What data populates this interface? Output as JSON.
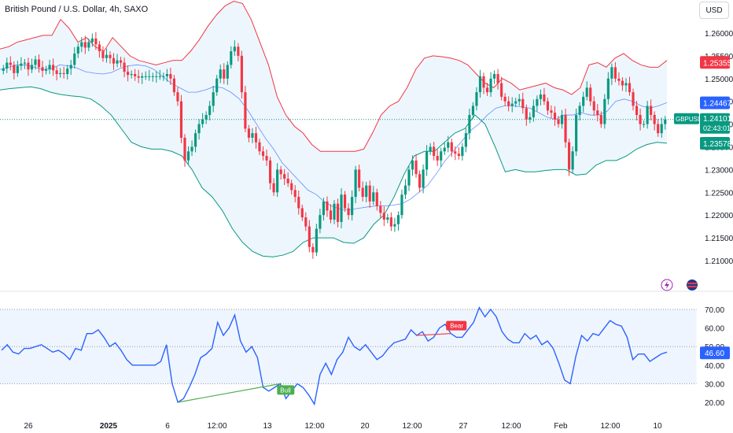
{
  "header": {
    "title": "British Pound / U.S. Dollar, 4h, SAXO",
    "currency": "USD"
  },
  "price_axis": {
    "ticks": [
      "1.26000",
      "1.25500",
      "1.25000",
      "1.24500",
      "1.24000",
      "1.23500",
      "1.23000",
      "1.22500",
      "1.22000",
      "1.21500",
      "1.21000"
    ],
    "tick_values": [
      1.26,
      1.255,
      1.25,
      1.245,
      1.24,
      1.235,
      1.23,
      1.225,
      1.22,
      1.215,
      1.21
    ],
    "labels": {
      "upper_band": {
        "text": "1.25355",
        "value": 1.25355,
        "color": "#f23645"
      },
      "basis": {
        "text": "1.24467",
        "value": 1.24467,
        "color": "#2962ff"
      },
      "symbol": "GBPUSD",
      "last_price": {
        "text": "1.24101",
        "value": 1.24101,
        "color": "#089981"
      },
      "countdown": "02:43:01",
      "lower_band": {
        "text": "1.23578",
        "value": 1.23578,
        "color": "#089981"
      }
    }
  },
  "rsi_axis": {
    "ticks": [
      "70.00",
      "60.00",
      "50.00",
      "40.00",
      "30.00",
      "20.00"
    ],
    "tick_values": [
      70,
      60,
      50,
      40,
      30,
      20
    ],
    "current": {
      "text": "46.60",
      "value": 46.6
    }
  },
  "time_axis": {
    "labels": [
      "26",
      "2025",
      "6",
      "12:00",
      "13",
      "12:00",
      "20",
      "12:00",
      "27",
      "12:00",
      "Feb",
      "12:00",
      "10"
    ],
    "bold": [
      "2025"
    ]
  },
  "annotations": {
    "bull_label": "Bull",
    "bear_label": "Bear"
  },
  "icons": [
    "lightning-icon",
    "flag-icon"
  ],
  "colors": {
    "up": "#089981",
    "down": "#f23645",
    "rsi_line": "#2962ff",
    "band_fill": "#e8f4fd"
  },
  "chart_data": [
    {
      "type": "candlestick",
      "title": "British Pound / U.S. Dollar, 4h, SAXO",
      "indicator": "Bollinger Bands",
      "y_range": [
        1.206,
        1.264
      ],
      "candles": [
        1.2522,
        1.2535,
        1.253,
        1.2512,
        1.2528,
        1.2533,
        1.2535,
        1.252,
        1.253,
        1.2542,
        1.2525,
        1.2517,
        1.252,
        1.253,
        1.2518,
        1.251,
        1.2512,
        1.251,
        1.2522,
        1.253,
        1.2555,
        1.257,
        1.258,
        1.2568,
        1.258,
        1.2588,
        1.2575,
        1.256,
        1.2545,
        1.2552,
        1.2545,
        1.2533,
        1.254,
        1.2535,
        1.2515,
        1.2508,
        1.251,
        1.2505,
        1.2502,
        1.2505,
        1.2505,
        1.2505,
        1.2505,
        1.2505,
        1.2505,
        1.2505,
        1.251,
        1.25,
        1.247,
        1.245,
        1.237,
        1.232,
        1.234,
        1.235,
        1.238,
        1.24,
        1.241,
        1.242,
        1.244,
        1.247,
        1.25,
        1.252,
        1.25,
        1.253,
        1.256,
        1.257,
        1.255,
        1.247,
        1.239,
        1.237,
        1.238,
        1.236,
        1.234,
        1.233,
        1.232,
        1.227,
        1.225,
        1.23,
        1.229,
        1.228,
        1.227,
        1.2255,
        1.224,
        1.2215,
        1.2195,
        1.2175,
        1.213,
        1.2118,
        1.217,
        1.22,
        1.223,
        1.221,
        1.219,
        1.2225,
        1.2185,
        1.2245,
        1.2215,
        1.22,
        1.224,
        1.23,
        1.226,
        1.224,
        1.2265,
        1.223,
        1.225,
        1.222,
        1.2205,
        1.219,
        1.2195,
        1.2175,
        1.218,
        1.22,
        1.2245,
        1.2265,
        1.23,
        1.232,
        1.229,
        1.226,
        1.23,
        1.234,
        1.235,
        1.233,
        1.232,
        1.234,
        1.2348,
        1.236,
        1.234,
        1.2335,
        1.233,
        1.235,
        1.238,
        1.242,
        1.244,
        1.247,
        1.2505,
        1.248,
        1.247,
        1.25,
        1.251,
        1.249,
        1.246,
        1.245,
        1.244,
        1.2445,
        1.245,
        1.2455,
        1.2435,
        1.241,
        1.2415,
        1.244,
        1.2455,
        1.2465,
        1.245,
        1.243,
        1.2425,
        1.241,
        1.24,
        1.242,
        1.236,
        1.23,
        1.234,
        1.242,
        1.244,
        1.246,
        1.248,
        1.245,
        1.243,
        1.242,
        1.24,
        1.2455,
        1.25,
        1.2525,
        1.25,
        1.2495,
        1.2485,
        1.249,
        1.247,
        1.244,
        1.242,
        1.24,
        1.24,
        1.244,
        1.242,
        1.24,
        1.238,
        1.24,
        1.241
      ],
      "upper_band": [
        1.2565,
        1.257,
        1.258,
        1.2585,
        1.259,
        1.2595,
        1.2595,
        1.263,
        1.261,
        1.258,
        1.259,
        1.257,
        1.256,
        1.259,
        1.257,
        1.255,
        1.254,
        1.2535,
        1.253,
        1.2535,
        1.254,
        1.254,
        1.256,
        1.2585,
        1.2615,
        1.264,
        1.266,
        1.267,
        1.2665,
        1.263,
        1.258,
        1.253,
        1.246,
        1.242,
        1.2395,
        1.238,
        1.2355,
        1.234,
        1.234,
        1.234,
        1.234,
        1.234,
        1.2345,
        1.238,
        1.242,
        1.244,
        1.245,
        1.248,
        1.252,
        1.2545,
        1.255,
        1.2548,
        1.2545,
        1.254,
        1.253,
        1.251,
        1.249,
        1.248,
        1.25,
        1.249,
        1.2475,
        1.248,
        1.2485,
        1.249,
        1.248,
        1.2475,
        1.2465,
        1.248,
        1.253,
        1.2535,
        1.2525,
        1.2545,
        1.2555,
        1.254,
        1.253,
        1.2525,
        1.2525,
        1.254
      ],
      "basis": [
        1.252,
        1.2525,
        1.253,
        1.253,
        1.2525,
        1.252,
        1.2522,
        1.253,
        1.2528,
        1.2523,
        1.2515,
        1.2512,
        1.251,
        1.2513,
        1.2522,
        1.2528,
        1.253,
        1.2528,
        1.252,
        1.2505,
        1.249,
        1.248,
        1.247,
        1.247,
        1.2475,
        1.2482,
        1.248,
        1.247,
        1.2455,
        1.243,
        1.24,
        1.237,
        1.2345,
        1.2315,
        1.2295,
        1.2275,
        1.2255,
        1.2245,
        1.2228,
        1.2218,
        1.2212,
        1.2212,
        1.2215,
        1.2218,
        1.222,
        1.222,
        1.2222,
        1.2225,
        1.2235,
        1.225,
        1.2265,
        1.229,
        1.2318,
        1.234,
        1.2362,
        1.2385,
        1.24,
        1.242,
        1.2435,
        1.244,
        1.244,
        1.2438,
        1.2435,
        1.2425,
        1.2415,
        1.241,
        1.242,
        1.242,
        1.2425,
        1.242,
        1.242,
        1.2428,
        1.245,
        1.2455,
        1.245,
        1.244,
        1.2435,
        1.244,
        1.2447
      ],
      "lower_band": [
        1.2475,
        1.2478,
        1.248,
        1.2482,
        1.2478,
        1.247,
        1.2465,
        1.2462,
        1.246,
        1.2455,
        1.244,
        1.242,
        1.239,
        1.236,
        1.235,
        1.2345,
        1.2345,
        1.234,
        1.233,
        1.23,
        1.226,
        1.224,
        1.221,
        1.217,
        1.214,
        1.212,
        1.211,
        1.2108,
        1.2112,
        1.212,
        1.214,
        1.215,
        1.215,
        1.215,
        1.214,
        1.2138,
        1.215,
        1.218,
        1.22,
        1.224,
        1.229,
        1.233,
        1.234,
        1.234,
        1.236,
        1.238,
        1.239,
        1.242,
        1.24,
        1.235,
        1.2295,
        1.23,
        1.2295,
        1.2295,
        1.2298,
        1.23,
        1.23,
        1.2288,
        1.229,
        1.231,
        1.232,
        1.232,
        1.233,
        1.2345,
        1.2355,
        1.236,
        1.2358
      ]
    },
    {
      "type": "line",
      "indicator": "RSI",
      "ylim": [
        15,
        75
      ],
      "levels": [
        70,
        50,
        30
      ],
      "values": [
        48,
        51,
        47,
        46,
        49,
        49,
        50,
        51,
        49,
        47,
        48,
        46,
        43,
        49,
        48,
        57,
        57,
        59,
        55,
        50,
        52,
        48,
        43,
        40,
        40,
        40,
        40,
        40,
        42,
        51,
        30,
        20,
        22,
        28,
        35,
        44,
        46,
        49,
        63,
        56,
        60,
        67,
        53,
        47,
        50,
        44,
        28,
        26,
        28,
        30,
        22,
        26,
        30,
        28,
        24,
        19,
        35,
        41,
        35,
        43,
        47,
        55,
        50,
        48,
        51,
        47,
        43,
        45,
        49,
        52,
        53,
        54,
        59,
        56,
        58,
        53,
        55,
        60,
        62,
        57,
        55,
        55,
        59,
        63,
        71,
        66,
        70,
        66,
        58,
        54,
        52,
        52,
        57,
        54,
        56,
        51,
        53,
        49,
        41,
        32,
        30,
        45,
        56,
        53,
        57,
        56,
        60,
        64,
        62,
        61,
        55,
        43,
        46,
        46,
        42,
        44,
        46,
        47
      ]
    }
  ]
}
